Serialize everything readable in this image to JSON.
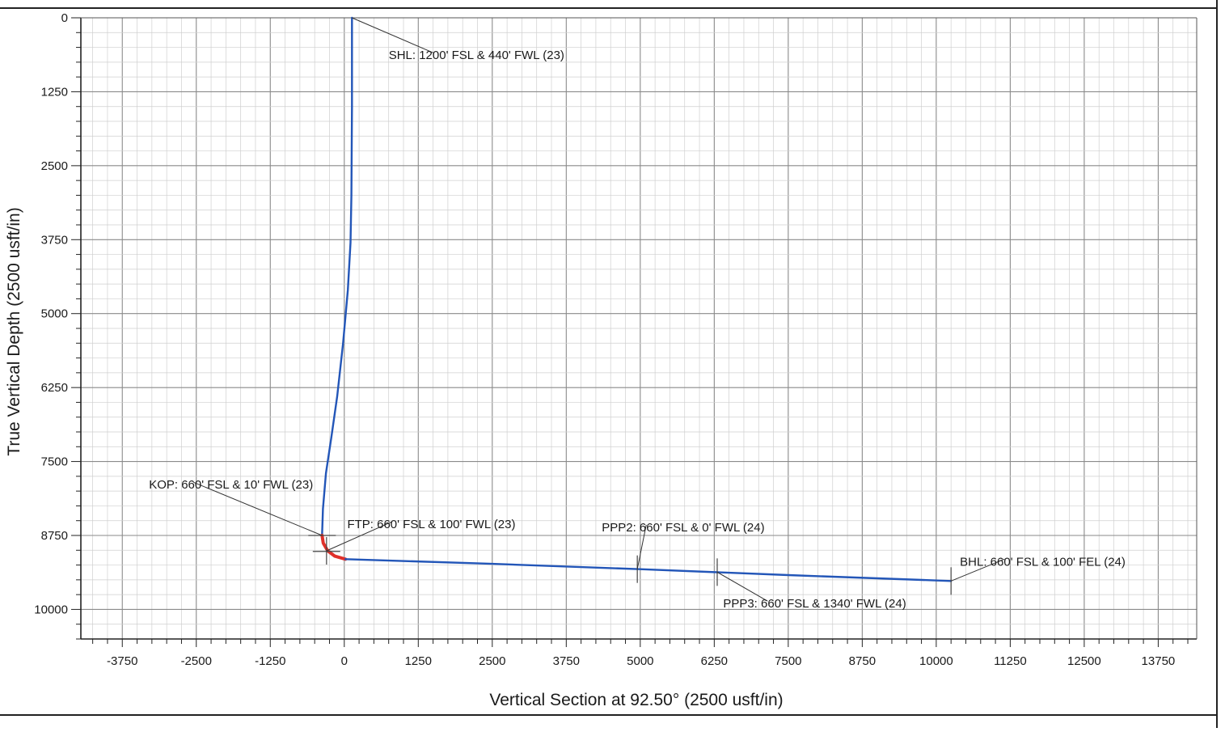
{
  "chart_data": {
    "type": "line",
    "xlabel": "Vertical Section at 92.50° (2500 usft/in)",
    "ylabel": "True Vertical Depth (2500 usft/in)",
    "xlim": [
      -4450,
      14400
    ],
    "ylim": [
      10500,
      0
    ],
    "y_inverted": true,
    "grid": true,
    "xticks": [
      {
        "value": -3750,
        "label": "-3750"
      },
      {
        "value": -2500,
        "label": "-2500"
      },
      {
        "value": -1250,
        "label": "-1250"
      },
      {
        "value": 0,
        "label": "0"
      },
      {
        "value": 1250,
        "label": "1250"
      },
      {
        "value": 2500,
        "label": "2500"
      },
      {
        "value": 3750,
        "label": "3750"
      },
      {
        "value": 5000,
        "label": "5000"
      },
      {
        "value": 6250,
        "label": "6250"
      },
      {
        "value": 7500,
        "label": "7500"
      },
      {
        "value": 8750,
        "label": "8750"
      },
      {
        "value": 10000,
        "label": "10000"
      },
      {
        "value": 11250,
        "label": "11250"
      },
      {
        "value": 12500,
        "label": "12500"
      },
      {
        "value": 13750,
        "label": "13750"
      }
    ],
    "yticks": [
      {
        "value": 0,
        "label": "0"
      },
      {
        "value": 1250,
        "label": "1250"
      },
      {
        "value": 2500,
        "label": "2500"
      },
      {
        "value": 3750,
        "label": "3750"
      },
      {
        "value": 5000,
        "label": "5000"
      },
      {
        "value": 6250,
        "label": "6250"
      },
      {
        "value": 7500,
        "label": "7500"
      },
      {
        "value": 8750,
        "label": "8750"
      },
      {
        "value": 10000,
        "label": "10000"
      }
    ],
    "series": [
      {
        "color": "#2356b8",
        "points": [
          {
            "x": 130,
            "y": 0
          },
          {
            "x": 130,
            "y": 1500
          },
          {
            "x": 120,
            "y": 3000
          },
          {
            "x": 105,
            "y": 3800
          },
          {
            "x": 60,
            "y": 4600
          },
          {
            "x": -20,
            "y": 5500
          },
          {
            "x": -120,
            "y": 6400
          },
          {
            "x": -220,
            "y": 7100
          },
          {
            "x": -310,
            "y": 7700
          },
          {
            "x": -360,
            "y": 8300
          },
          {
            "x": -375,
            "y": 8750
          }
        ]
      },
      {
        "color": "#e0302a",
        "points": [
          {
            "x": -375,
            "y": 8750
          },
          {
            "x": -355,
            "y": 8880
          },
          {
            "x": -280,
            "y": 9010
          },
          {
            "x": -160,
            "y": 9100
          },
          {
            "x": 20,
            "y": 9150
          }
        ]
      },
      {
        "color": "#2356b8",
        "points": [
          {
            "x": 20,
            "y": 9150
          },
          {
            "x": 2500,
            "y": 9230
          },
          {
            "x": 5000,
            "y": 9320
          },
          {
            "x": 7500,
            "y": 9420
          },
          {
            "x": 10250,
            "y": 9520
          }
        ]
      }
    ],
    "annotations": [
      {
        "text": "SHL: 1200' FSL & 440' FWL (23)",
        "anchor": {
          "x": 130,
          "y": 0
        },
        "label_pos": {
          "x": 750,
          "y": 700
        },
        "label_align": "start"
      },
      {
        "text": "KOP: 660' FSL & 10' FWL (23)",
        "anchor": {
          "x": -375,
          "y": 8750
        },
        "label_pos": {
          "x": -3300,
          "y": 7960
        },
        "label_align": "start"
      },
      {
        "text": "FTP: 660' FSL & 100' FWL (23)",
        "anchor": {
          "x": -300,
          "y": 9010
        },
        "label_pos": {
          "x": 50,
          "y": 8630
        },
        "label_align": "start"
      },
      {
        "text": "PPP2: 660' FSL & 0' FWL (24)",
        "anchor": {
          "x": 4950,
          "y": 9320
        },
        "label_pos": {
          "x": 4350,
          "y": 8680
        },
        "label_align": "start"
      },
      {
        "text": "PPP3: 660' FSL & 1340' FWL (24)",
        "anchor": {
          "x": 6300,
          "y": 9370
        },
        "label_pos": {
          "x": 6400,
          "y": 9970
        },
        "label_align": "start"
      },
      {
        "text": "BHL: 660' FSL & 100' FEL (24)",
        "anchor": {
          "x": 10250,
          "y": 9520
        },
        "label_pos": {
          "x": 10400,
          "y": 9260
        },
        "label_align": "start"
      }
    ],
    "markers": [
      {
        "x": -375,
        "y": 8750,
        "kind": "h"
      },
      {
        "x": -300,
        "y": 9020,
        "kind": "h"
      },
      {
        "x": -300,
        "y": 9010,
        "kind": "v"
      },
      {
        "x": 4950,
        "y": 9320,
        "kind": "v"
      },
      {
        "x": 6300,
        "y": 9370,
        "kind": "v"
      },
      {
        "x": 10250,
        "y": 9520,
        "kind": "v"
      }
    ]
  }
}
